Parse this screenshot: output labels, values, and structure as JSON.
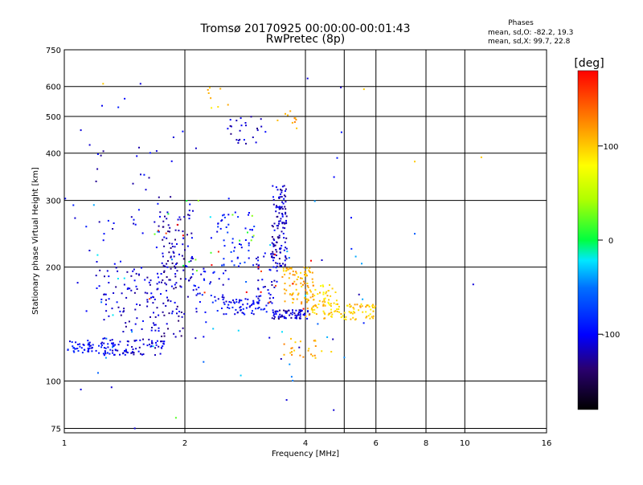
{
  "chart_data": {
    "type": "scatter",
    "title": "Tromsø 20170925 00:00:00-00:01:43",
    "subtitle": "RwPretec (8p)",
    "xlabel": "Frequency [MHz]",
    "ylabel": "Stationary phase Virtual Height [km]",
    "x_scale": "log",
    "y_scale": "log",
    "xlim": [
      1,
      16
    ],
    "ylim": [
      73,
      750
    ],
    "x_ticks": [
      1,
      2,
      4,
      6,
      8,
      10,
      16
    ],
    "x_tick_labels": [
      "1",
      "2",
      "4",
      "6",
      "8",
      "10",
      "16"
    ],
    "y_ticks": [
      75,
      100,
      200,
      300,
      400,
      500,
      600,
      750
    ],
    "y_tick_labels": [
      "75",
      "100",
      "200",
      "300",
      "400",
      "500",
      "600",
      "750"
    ],
    "grid": true,
    "colorbar": {
      "label": "[deg]",
      "min": -180,
      "max": 180,
      "ticks": [
        100,
        0,
        -100
      ],
      "tick_labels": [
        "100",
        "0",
        "-100"
      ]
    },
    "stats": {
      "heading": "Phases",
      "line1": "mean, sd,O: -82.2, 19.3",
      "line2": "mean, sd,X:  99.7, 22.8"
    },
    "clusters": [
      {
        "fx": [
          1.02,
          1.18
        ],
        "fy": [
          118,
          128
        ],
        "phase": -95,
        "n": 40
      },
      {
        "fx": [
          1.2,
          1.38
        ],
        "fy": [
          117,
          130
        ],
        "phase": -105,
        "n": 40
      },
      {
        "fx": [
          1.4,
          1.78
        ],
        "fy": [
          117,
          130
        ],
        "phase": -110,
        "n": 55
      },
      {
        "fx": [
          1.2,
          1.4
        ],
        "fy": [
          140,
          210
        ],
        "phase": -110,
        "n": 30
      },
      {
        "fx": [
          1.4,
          1.75
        ],
        "fy": [
          135,
          200
        ],
        "phase": -115,
        "n": 70
      },
      {
        "fx": [
          1.75,
          2.0
        ],
        "fy": [
          130,
          280
        ],
        "phase": -120,
        "n": 100
      },
      {
        "fx": [
          2.0,
          2.1
        ],
        "fy": [
          160,
          300
        ],
        "phase": -110,
        "n": 25
      },
      {
        "fx": [
          2.1,
          2.6
        ],
        "fy": [
          150,
          200
        ],
        "phase": -100,
        "n": 40
      },
      {
        "fx": [
          2.4,
          3.0
        ],
        "fy": [
          200,
          280
        ],
        "phase": -90,
        "n": 50
      },
      {
        "fx": [
          2.5,
          3.2
        ],
        "fy": [
          150,
          165
        ],
        "phase": -100,
        "n": 60
      },
      {
        "fx": [
          3.0,
          3.4
        ],
        "fy": [
          160,
          220
        ],
        "phase": -110,
        "n": 40
      },
      {
        "fx": [
          3.3,
          3.6
        ],
        "fy": [
          200,
          330
        ],
        "phase": -115,
        "n": 120
      },
      {
        "fx": [
          3.3,
          4.1
        ],
        "fy": [
          146,
          154
        ],
        "phase": -115,
        "n": 70
      },
      {
        "fx": [
          3.5,
          4.2
        ],
        "fy": [
          160,
          200
        ],
        "phase": 110,
        "n": 90
      },
      {
        "fx": [
          4.0,
          6.0
        ],
        "fy": [
          145,
          160
        ],
        "phase": 100,
        "n": 100
      },
      {
        "fx": [
          4.2,
          4.8
        ],
        "fy": [
          160,
          180
        ],
        "phase": 95,
        "n": 30
      },
      {
        "fx": [
          2.5,
          3.2
        ],
        "fy": [
          420,
          500
        ],
        "phase": -115,
        "n": 25
      },
      {
        "fx": [
          3.4,
          3.9
        ],
        "fy": [
          460,
          520
        ],
        "phase": 110,
        "n": 10
      },
      {
        "fx": [
          1.2,
          1.9
        ],
        "fy": [
          220,
          420
        ],
        "phase": -110,
        "n": 40
      },
      {
        "fx": [
          2.2,
          2.6
        ],
        "fy": [
          520,
          600
        ],
        "phase": 100,
        "n": 8
      },
      {
        "fx": [
          3.5,
          4.8
        ],
        "fy": [
          115,
          130
        ],
        "phase": 110,
        "n": 25
      },
      {
        "fx": [
          1.0,
          6.0
        ],
        "fy": [
          75,
          600
        ],
        "phase": -105,
        "n": 45
      },
      {
        "fx": [
          1.0,
          6.0
        ],
        "fy": [
          100,
          300
        ],
        "phase": -40,
        "n": 35
      },
      {
        "fx": [
          1.5,
          3.0
        ],
        "fy": [
          180,
          300
        ],
        "phase": 20,
        "n": 15
      },
      {
        "fx": [
          1.5,
          4.5
        ],
        "fy": [
          150,
          260
        ],
        "phase": 170,
        "n": 18
      }
    ],
    "points": [
      {
        "x": 7.5,
        "y": 380,
        "phase": 100
      },
      {
        "x": 7.5,
        "y": 245,
        "phase": -60
      },
      {
        "x": 11.0,
        "y": 390,
        "phase": 100
      },
      {
        "x": 10.5,
        "y": 180,
        "phase": -110
      },
      {
        "x": 5.6,
        "y": 590,
        "phase": 100
      },
      {
        "x": 4.05,
        "y": 630,
        "phase": -110
      },
      {
        "x": 1.25,
        "y": 610,
        "phase": 100
      },
      {
        "x": 1.55,
        "y": 610,
        "phase": -110
      },
      {
        "x": 1.1,
        "y": 460,
        "phase": -110
      },
      {
        "x": 1.9,
        "y": 80,
        "phase": 20
      },
      {
        "x": 1.5,
        "y": 75,
        "phase": -110
      },
      {
        "x": 1.1,
        "y": 95,
        "phase": -110
      }
    ]
  }
}
